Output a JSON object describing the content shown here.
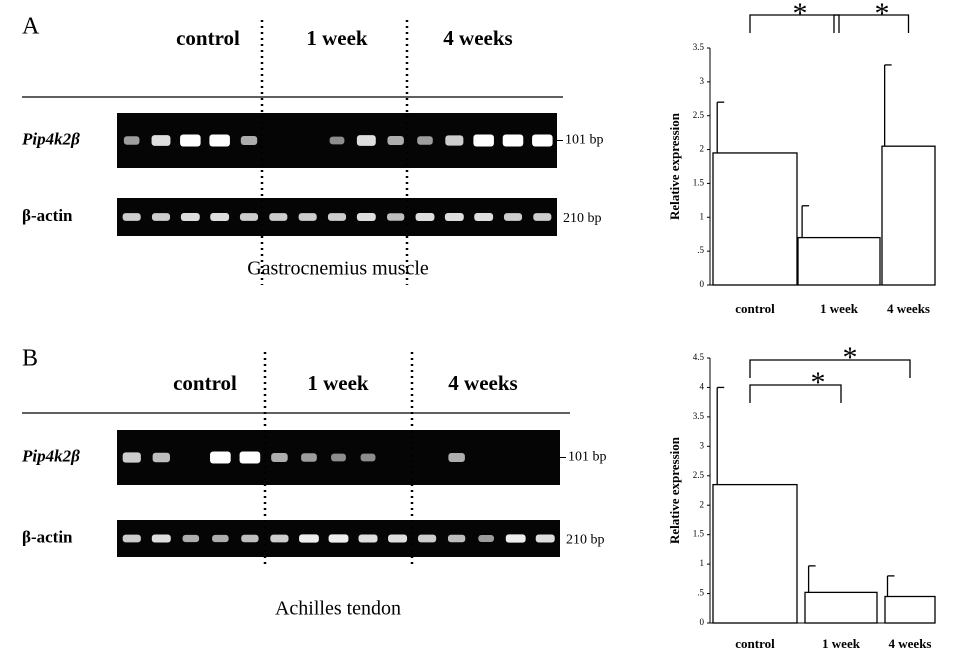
{
  "panels": [
    {
      "letter": "A",
      "groups": [
        "control",
        "1 week",
        "4 weeks"
      ],
      "gene_label": "Pip4k2β",
      "gene_size": "101 bp",
      "ref_label": "β-actin",
      "ref_size": "210 bp",
      "tissue": "Gastrocnemius muscle"
    },
    {
      "letter": "B",
      "groups": [
        "control",
        "1 week",
        "4 weeks"
      ],
      "gene_label": "Pip4k2β",
      "gene_size": "101 bp",
      "ref_label": "β-actin",
      "ref_size": "210 bp",
      "tissue": "Achilles tendon"
    }
  ],
  "chart_data": [
    {
      "type": "bar",
      "y_label": "Relative expression",
      "categories": [
        "control",
        "1 week",
        "4 weeks"
      ],
      "series": [
        {
          "color": "#ffffff",
          "values": [
            1.95,
            0.7,
            2.05
          ],
          "errors": [
            0.75,
            0.47,
            1.2
          ]
        }
      ],
      "ylim": [
        0,
        3.5
      ],
      "yticks": [
        0,
        {
          "value": 0.5,
          "label": ".5"
        },
        1,
        1.5,
        2,
        2.5,
        3,
        3.5
      ],
      "annotations": [
        "*",
        "*"
      ]
    },
    {
      "type": "bar",
      "y_label": "Relative expression",
      "categories": [
        "control",
        "1 week",
        "4 weeks"
      ],
      "series": [
        {
          "color": "#ffffff",
          "values": [
            2.35,
            0.52,
            0.45
          ],
          "errors": [
            1.65,
            0.45,
            0.35
          ]
        }
      ],
      "ylim": [
        0,
        4.5
      ],
      "yticks": [
        0,
        {
          "value": 0.5,
          "label": ".5"
        },
        1,
        1.5,
        2,
        2.5,
        3,
        3.5,
        4,
        4.5
      ],
      "annotations": [
        "*",
        "*"
      ]
    }
  ]
}
